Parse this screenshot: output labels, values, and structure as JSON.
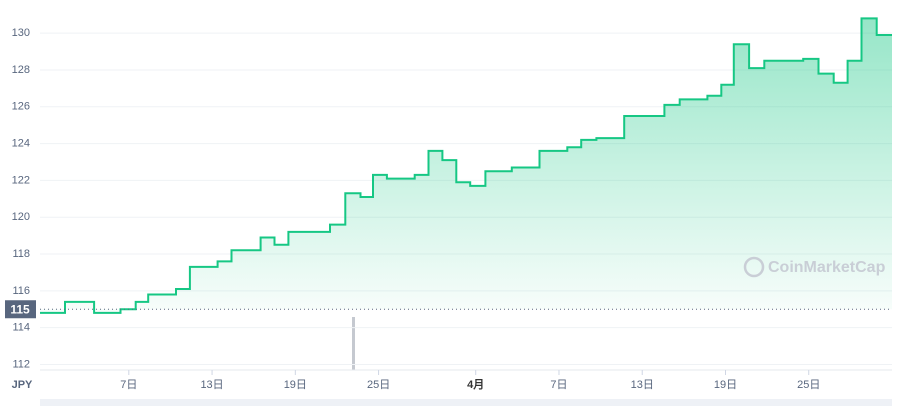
{
  "chart_data": {
    "type": "line",
    "currency": "JPY",
    "watermark": "CoinMarketCap",
    "x": [
      0.6,
      2.4,
      2.4,
      4.5,
      4.5,
      6.4,
      6.4,
      7.5,
      7.5,
      8.4,
      8.4,
      10.4,
      10.4,
      11.4,
      11.4,
      13.4,
      13.4,
      14.4,
      14.4,
      16.5,
      16.5,
      17.5,
      17.5,
      18.5,
      18.5,
      21.5,
      21.5,
      22.6,
      22.6,
      23.7,
      23.7,
      24.6,
      24.6,
      25.6,
      25.6,
      27.6,
      27.6,
      28.6,
      28.6,
      29.6,
      29.6,
      30.6,
      30.6,
      31.6,
      31.6,
      32.7,
      32.7,
      34.6,
      34.6,
      36.6,
      36.6,
      38.6,
      38.6,
      39.6,
      39.6,
      40.7,
      40.7,
      42.7,
      42.7,
      45.6,
      45.6,
      46.7,
      46.7,
      48.7,
      48.7,
      49.7,
      49.7,
      50.6,
      50.6,
      51.7,
      51.7,
      52.8,
      52.8,
      55.6,
      55.6,
      56.7,
      56.7,
      57.8,
      57.8,
      58.8,
      58.8,
      59.8,
      59.8,
      60.9,
      60.9,
      62
    ],
    "series": [
      {
        "name": "JPY",
        "color": "#16c784",
        "values": [
          114.8,
          114.8,
          115.4,
          115.4,
          114.8,
          114.8,
          115.0,
          115.0,
          115.4,
          115.4,
          115.8,
          115.8,
          116.1,
          116.1,
          117.3,
          117.3,
          117.6,
          117.6,
          118.2,
          118.2,
          118.9,
          118.9,
          118.5,
          118.5,
          119.2,
          119.2,
          119.6,
          119.6,
          121.3,
          121.3,
          121.1,
          121.1,
          122.3,
          122.3,
          122.1,
          122.1,
          122.3,
          122.3,
          123.6,
          123.6,
          123.1,
          123.1,
          121.9,
          121.9,
          121.7,
          121.7,
          122.5,
          122.5,
          122.7,
          122.7,
          123.6,
          123.6,
          123.8,
          123.8,
          124.2,
          124.2,
          124.3,
          124.3,
          125.5,
          125.5,
          126.1,
          126.1,
          126.4,
          126.4,
          126.6,
          126.6,
          127.2,
          127.2,
          129.4,
          129.4,
          128.1,
          128.1,
          128.5,
          128.5,
          128.6,
          128.6,
          127.8,
          127.8,
          127.3,
          127.3,
          128.5,
          128.5,
          130.8,
          130.8,
          129.9,
          129.9
        ]
      }
    ],
    "xlim": [
      0.6,
      62
    ],
    "xticks": [
      {
        "value": 7,
        "label": "7日"
      },
      {
        "value": 13,
        "label": "13日"
      },
      {
        "value": 19,
        "label": "19日"
      },
      {
        "value": 25,
        "label": "25日"
      },
      {
        "value": 32,
        "label": "4月"
      },
      {
        "value": 38,
        "label": "7日"
      },
      {
        "value": 44,
        "label": "13日"
      },
      {
        "value": 50,
        "label": "19日"
      },
      {
        "value": 56,
        "label": "25日"
      }
    ],
    "ylim": [
      111.7,
      131.8
    ],
    "yticks": [
      112,
      114,
      116,
      118,
      120,
      122,
      124,
      126,
      128,
      130
    ],
    "reference": 115,
    "grid": true
  }
}
